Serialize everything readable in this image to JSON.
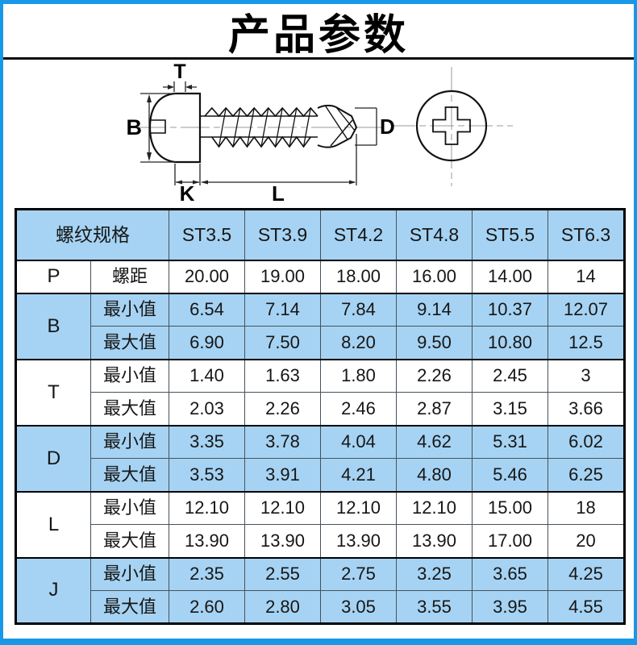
{
  "page": {
    "title": "产品参数",
    "colors": {
      "frame_blue": "#1898e6",
      "cell_blue": "#a6d3f3"
    }
  },
  "diagram": {
    "labels": {
      "t": "T",
      "b": "B",
      "k": "K",
      "l": "L",
      "d": "D"
    }
  },
  "table": {
    "header": {
      "spec_label": "螺纹规格",
      "sizes": [
        "ST3.5",
        "ST3.9",
        "ST4.2",
        "ST4.8",
        "ST5.5",
        "ST6.3"
      ]
    },
    "groups": [
      {
        "param": "P",
        "shaded": false,
        "rows": [
          {
            "label": "螺距",
            "values": [
              "20.00",
              "19.00",
              "18.00",
              "16.00",
              "14.00",
              "14"
            ]
          }
        ]
      },
      {
        "param": "B",
        "shaded": true,
        "rows": [
          {
            "label": "最小值",
            "values": [
              "6.54",
              "7.14",
              "7.84",
              "9.14",
              "10.37",
              "12.07"
            ]
          },
          {
            "label": "最大值",
            "values": [
              "6.90",
              "7.50",
              "8.20",
              "9.50",
              "10.80",
              "12.5"
            ]
          }
        ]
      },
      {
        "param": "T",
        "shaded": false,
        "rows": [
          {
            "label": "最小值",
            "values": [
              "1.40",
              "1.63",
              "1.80",
              "2.26",
              "2.45",
              "3"
            ]
          },
          {
            "label": "最大值",
            "values": [
              "2.03",
              "2.26",
              "2.46",
              "2.87",
              "3.15",
              "3.66"
            ]
          }
        ]
      },
      {
        "param": "D",
        "shaded": true,
        "rows": [
          {
            "label": "最小值",
            "values": [
              "3.35",
              "3.78",
              "4.04",
              "4.62",
              "5.31",
              "6.02"
            ]
          },
          {
            "label": "最大值",
            "values": [
              "3.53",
              "3.91",
              "4.21",
              "4.80",
              "5.46",
              "6.25"
            ]
          }
        ]
      },
      {
        "param": "L",
        "shaded": false,
        "rows": [
          {
            "label": "最小值",
            "values": [
              "12.10",
              "12.10",
              "12.10",
              "12.10",
              "15.00",
              "18"
            ]
          },
          {
            "label": "最大值",
            "values": [
              "13.90",
              "13.90",
              "13.90",
              "13.90",
              "17.00",
              "20"
            ]
          }
        ]
      },
      {
        "param": "J",
        "shaded": true,
        "rows": [
          {
            "label": "最小值",
            "values": [
              "2.35",
              "2.55",
              "2.75",
              "3.25",
              "3.65",
              "4.25"
            ]
          },
          {
            "label": "最大值",
            "values": [
              "2.60",
              "2.80",
              "3.05",
              "3.55",
              "3.95",
              "4.55"
            ]
          }
        ]
      }
    ]
  }
}
